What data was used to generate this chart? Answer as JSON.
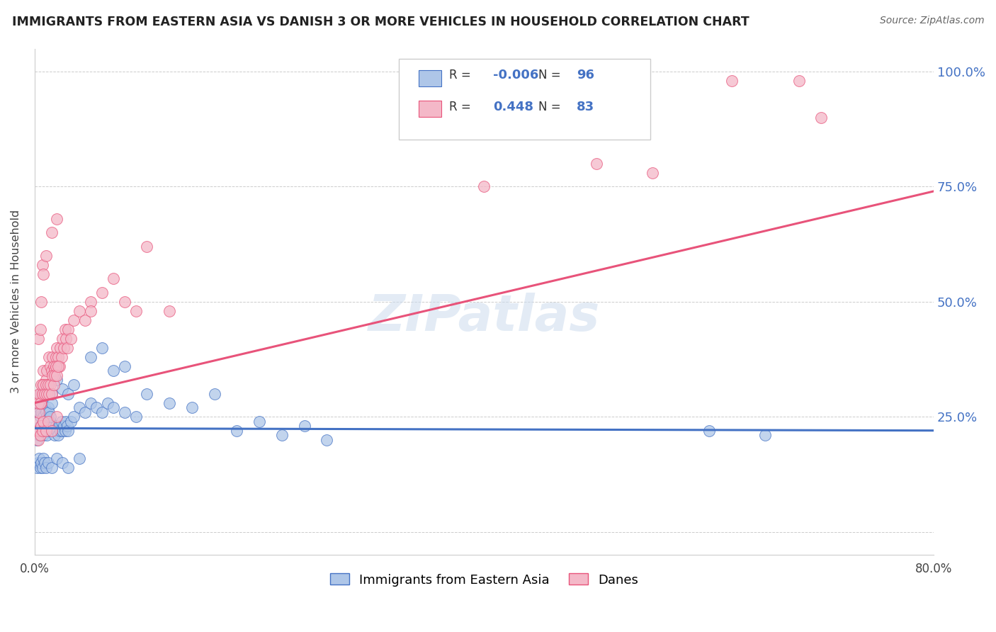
{
  "title": "IMMIGRANTS FROM EASTERN ASIA VS DANISH 3 OR MORE VEHICLES IN HOUSEHOLD CORRELATION CHART",
  "source": "Source: ZipAtlas.com",
  "ylabel": "3 or more Vehicles in Household",
  "legend_blue_label": "Immigrants from Eastern Asia",
  "legend_pink_label": "Danes",
  "legend_r_blue": "-0.006",
  "legend_n_blue": "96",
  "legend_r_pink": "0.448",
  "legend_n_pink": "83",
  "blue_color": "#aec6e8",
  "pink_color": "#f4b8c8",
  "blue_line_color": "#4472c4",
  "pink_line_color": "#e8537a",
  "grid_color": "#cccccc",
  "background_color": "#ffffff",
  "blue_scatter": [
    [
      0.2,
      20
    ],
    [
      0.3,
      22
    ],
    [
      0.4,
      21
    ],
    [
      0.5,
      23
    ],
    [
      0.6,
      22
    ],
    [
      0.7,
      24
    ],
    [
      0.8,
      21
    ],
    [
      0.9,
      23
    ],
    [
      1.0,
      22
    ],
    [
      1.1,
      21
    ],
    [
      1.2,
      23
    ],
    [
      1.3,
      22
    ],
    [
      1.4,
      24
    ],
    [
      1.5,
      22
    ],
    [
      1.6,
      23
    ],
    [
      1.7,
      22
    ],
    [
      1.8,
      21
    ],
    [
      1.9,
      23
    ],
    [
      2.0,
      22
    ],
    [
      2.1,
      21
    ],
    [
      2.2,
      23
    ],
    [
      2.3,
      22
    ],
    [
      2.4,
      24
    ],
    [
      2.5,
      22
    ],
    [
      2.6,
      23
    ],
    [
      2.7,
      22
    ],
    [
      2.8,
      24
    ],
    [
      2.9,
      23
    ],
    [
      3.0,
      22
    ],
    [
      3.2,
      24
    ],
    [
      3.5,
      25
    ],
    [
      4.0,
      27
    ],
    [
      4.5,
      26
    ],
    [
      5.0,
      28
    ],
    [
      5.5,
      27
    ],
    [
      6.0,
      26
    ],
    [
      6.5,
      28
    ],
    [
      7.0,
      27
    ],
    [
      8.0,
      26
    ],
    [
      9.0,
      25
    ],
    [
      0.3,
      26
    ],
    [
      0.4,
      27
    ],
    [
      0.5,
      25
    ],
    [
      0.6,
      26
    ],
    [
      0.7,
      28
    ],
    [
      0.8,
      25
    ],
    [
      0.9,
      27
    ],
    [
      1.0,
      26
    ],
    [
      1.1,
      25
    ],
    [
      1.2,
      27
    ],
    [
      1.3,
      26
    ],
    [
      1.4,
      25
    ],
    [
      1.5,
      28
    ],
    [
      0.5,
      30
    ],
    [
      0.7,
      29
    ],
    [
      0.8,
      31
    ],
    [
      1.0,
      30
    ],
    [
      1.2,
      32
    ],
    [
      1.5,
      30
    ],
    [
      2.0,
      33
    ],
    [
      2.5,
      31
    ],
    [
      3.0,
      30
    ],
    [
      3.5,
      32
    ],
    [
      0.2,
      14
    ],
    [
      0.3,
      15
    ],
    [
      0.4,
      16
    ],
    [
      0.5,
      14
    ],
    [
      0.6,
      15
    ],
    [
      0.7,
      14
    ],
    [
      0.8,
      16
    ],
    [
      0.9,
      15
    ],
    [
      1.0,
      14
    ],
    [
      1.2,
      15
    ],
    [
      1.5,
      14
    ],
    [
      2.0,
      16
    ],
    [
      2.5,
      15
    ],
    [
      3.0,
      14
    ],
    [
      4.0,
      16
    ],
    [
      10.0,
      30
    ],
    [
      12.0,
      28
    ],
    [
      14.0,
      27
    ],
    [
      16.0,
      30
    ],
    [
      18.0,
      22
    ],
    [
      20.0,
      24
    ],
    [
      22.0,
      21
    ],
    [
      24.0,
      23
    ],
    [
      26.0,
      20
    ],
    [
      5.0,
      38
    ],
    [
      6.0,
      40
    ],
    [
      7.0,
      35
    ],
    [
      8.0,
      36
    ],
    [
      60.0,
      22
    ],
    [
      65.0,
      21
    ]
  ],
  "pink_scatter": [
    [
      0.2,
      22
    ],
    [
      0.3,
      24
    ],
    [
      0.4,
      26
    ],
    [
      0.5,
      30
    ],
    [
      0.6,
      28
    ],
    [
      0.7,
      32
    ],
    [
      0.8,
      35
    ],
    [
      0.9,
      30
    ],
    [
      1.0,
      33
    ],
    [
      1.1,
      35
    ],
    [
      1.2,
      32
    ],
    [
      1.3,
      38
    ],
    [
      1.4,
      36
    ],
    [
      1.5,
      35
    ],
    [
      1.6,
      38
    ],
    [
      1.7,
      36
    ],
    [
      1.8,
      35
    ],
    [
      1.9,
      38
    ],
    [
      2.0,
      40
    ],
    [
      2.1,
      38
    ],
    [
      2.2,
      36
    ],
    [
      2.3,
      40
    ],
    [
      2.4,
      38
    ],
    [
      2.5,
      42
    ],
    [
      2.6,
      40
    ],
    [
      2.7,
      44
    ],
    [
      2.8,
      42
    ],
    [
      2.9,
      40
    ],
    [
      3.0,
      44
    ],
    [
      3.2,
      42
    ],
    [
      3.5,
      46
    ],
    [
      4.0,
      48
    ],
    [
      4.5,
      46
    ],
    [
      5.0,
      50
    ],
    [
      0.3,
      28
    ],
    [
      0.4,
      30
    ],
    [
      0.5,
      28
    ],
    [
      0.6,
      32
    ],
    [
      0.7,
      30
    ],
    [
      0.8,
      32
    ],
    [
      0.9,
      30
    ],
    [
      1.0,
      32
    ],
    [
      1.1,
      30
    ],
    [
      1.2,
      32
    ],
    [
      1.3,
      30
    ],
    [
      1.4,
      32
    ],
    [
      1.5,
      30
    ],
    [
      1.6,
      34
    ],
    [
      1.7,
      32
    ],
    [
      1.8,
      34
    ],
    [
      1.9,
      36
    ],
    [
      2.0,
      34
    ],
    [
      2.1,
      36
    ],
    [
      0.3,
      42
    ],
    [
      0.5,
      44
    ],
    [
      0.6,
      50
    ],
    [
      0.7,
      58
    ],
    [
      0.8,
      56
    ],
    [
      1.0,
      60
    ],
    [
      1.5,
      65
    ],
    [
      2.0,
      68
    ],
    [
      0.3,
      20
    ],
    [
      0.4,
      22
    ],
    [
      0.5,
      21
    ],
    [
      0.6,
      23
    ],
    [
      0.7,
      22
    ],
    [
      0.8,
      24
    ],
    [
      1.0,
      22
    ],
    [
      1.2,
      24
    ],
    [
      1.5,
      22
    ],
    [
      2.0,
      25
    ],
    [
      5.0,
      48
    ],
    [
      6.0,
      52
    ],
    [
      7.0,
      55
    ],
    [
      8.0,
      50
    ],
    [
      9.0,
      48
    ],
    [
      10.0,
      62
    ],
    [
      12.0,
      48
    ],
    [
      40.0,
      75
    ],
    [
      50.0,
      80
    ],
    [
      55.0,
      78
    ],
    [
      62.0,
      98
    ],
    [
      68.0,
      98
    ],
    [
      70.0,
      90
    ]
  ],
  "blue_line_x": [
    0,
    80
  ],
  "blue_line_y": [
    22.5,
    22.0
  ],
  "pink_line_x": [
    0,
    80
  ],
  "pink_line_y": [
    28.0,
    74.0
  ],
  "xmin": 0.0,
  "xmax": 80.0,
  "ymin": -5.0,
  "ymax": 105.0,
  "yticks": [
    0,
    25,
    50,
    75,
    100
  ],
  "ytick_labels_right": [
    "",
    "25.0%",
    "50.0%",
    "75.0%",
    "100.0%"
  ]
}
